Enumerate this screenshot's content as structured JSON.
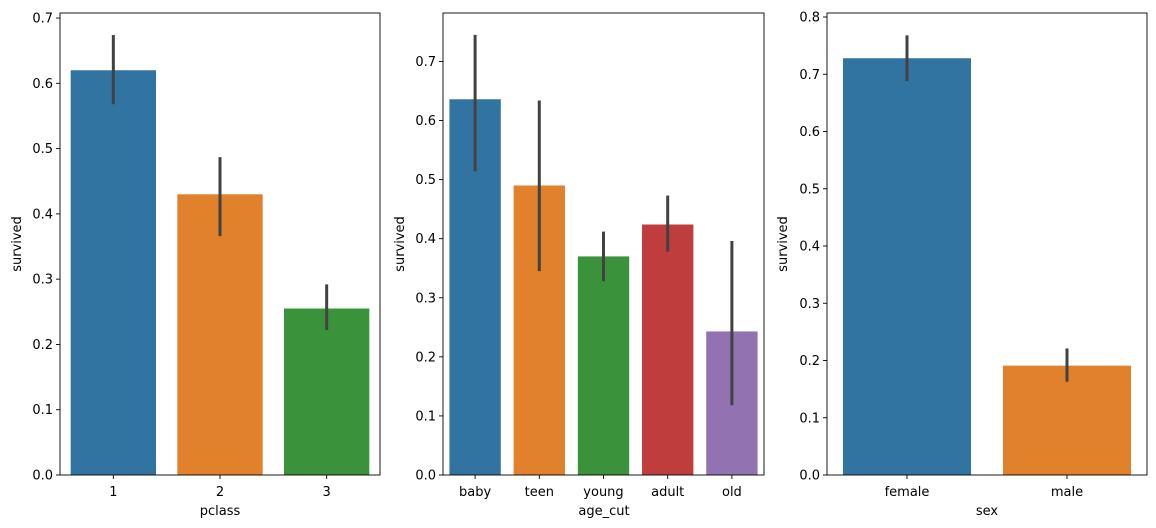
{
  "chart_data": [
    {
      "type": "bar",
      "xlabel": "pclass",
      "ylabel": "survived",
      "categories": [
        "1",
        "2",
        "3"
      ],
      "values": [
        0.62,
        0.43,
        0.255
      ],
      "ci_low": [
        0.568,
        0.366,
        0.222
      ],
      "ci_high": [
        0.674,
        0.487,
        0.292
      ],
      "colors": [
        "#3274a1",
        "#e1812c",
        "#3a923a"
      ],
      "ylim": [
        0,
        0.7077
      ],
      "yticks": [
        "0.0",
        "0.1",
        "0.2",
        "0.3",
        "0.4",
        "0.5",
        "0.6",
        "0.7"
      ],
      "grid": false
    },
    {
      "type": "bar",
      "xlabel": "age_cut",
      "ylabel": "survived",
      "categories": [
        "baby",
        "teen",
        "young",
        "adult",
        "old"
      ],
      "values": [
        0.636,
        0.49,
        0.37,
        0.424,
        0.243
      ],
      "ci_low": [
        0.514,
        0.345,
        0.328,
        0.378,
        0.118
      ],
      "ci_high": [
        0.745,
        0.634,
        0.412,
        0.473,
        0.396
      ],
      "colors": [
        "#3274a1",
        "#e1812c",
        "#3a923a",
        "#c03d3e",
        "#9372b2"
      ],
      "ylim": [
        0,
        0.782
      ],
      "yticks": [
        "0.0",
        "0.1",
        "0.2",
        "0.3",
        "0.4",
        "0.5",
        "0.6",
        "0.7"
      ],
      "grid": false
    },
    {
      "type": "bar",
      "xlabel": "sex",
      "ylabel": "survived",
      "categories": [
        "female",
        "male"
      ],
      "values": [
        0.728,
        0.191
      ],
      "ci_low": [
        0.688,
        0.163
      ],
      "ci_high": [
        0.768,
        0.221
      ],
      "colors": [
        "#3274a1",
        "#e1812c"
      ],
      "ylim": [
        0,
        0.807
      ],
      "yticks": [
        "0.0",
        "0.1",
        "0.2",
        "0.3",
        "0.4",
        "0.5",
        "0.6",
        "0.7",
        "0.8"
      ],
      "grid": false
    }
  ]
}
